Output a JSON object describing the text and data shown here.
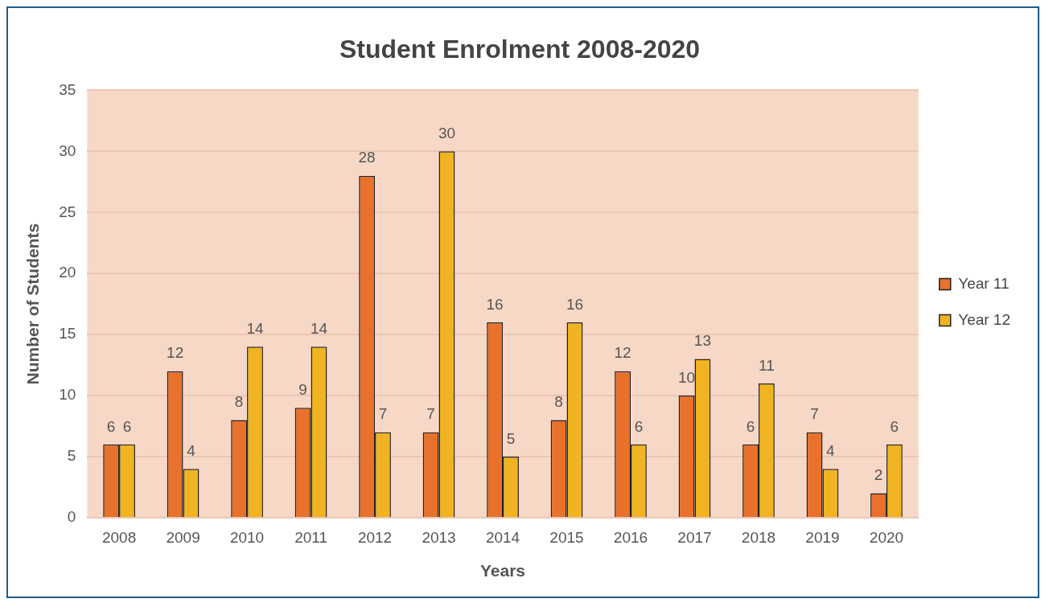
{
  "chart_data": {
    "type": "bar",
    "title": "Student Enrolment 2008-2020",
    "xlabel": "Years",
    "ylabel": "Number of Students",
    "categories": [
      "2008",
      "2009",
      "2010",
      "2011",
      "2012",
      "2013",
      "2014",
      "2015",
      "2016",
      "2017",
      "2018",
      "2019",
      "2020"
    ],
    "series": [
      {
        "name": "Year 11",
        "color": "#e8712b",
        "values": [
          6,
          12,
          8,
          9,
          28,
          7,
          16,
          8,
          12,
          10,
          6,
          7,
          2
        ]
      },
      {
        "name": "Year 12",
        "color": "#f0b422",
        "values": [
          6,
          4,
          14,
          14,
          7,
          30,
          5,
          16,
          6,
          13,
          11,
          4,
          6
        ]
      }
    ],
    "ylim": [
      0,
      35
    ],
    "yticks": [
      0,
      5,
      10,
      15,
      20,
      25,
      30,
      35
    ],
    "grid": "y",
    "legend": "right",
    "data_labels": true
  }
}
